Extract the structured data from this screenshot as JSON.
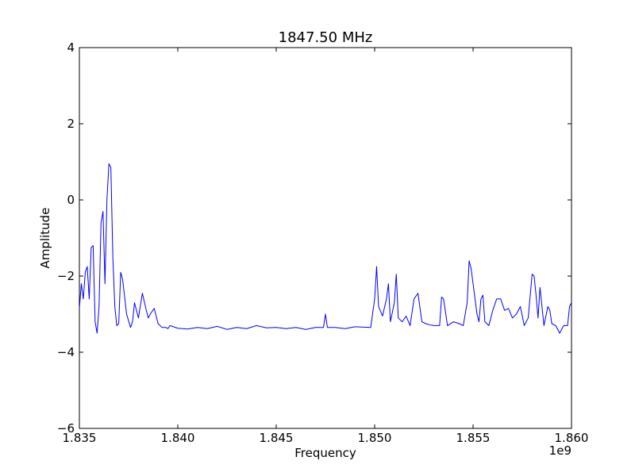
{
  "chart_data": {
    "type": "line",
    "title": "1847.50 MHz",
    "xlabel": "Frequency",
    "ylabel": "Amplitude",
    "x_offset_label": "1e9",
    "xlim": [
      1.835,
      1.86
    ],
    "ylim": [
      -6,
      4
    ],
    "x_ticks": [
      1.835,
      1.84,
      1.845,
      1.85,
      1.855,
      1.86
    ],
    "x_tick_labels": [
      "1.835",
      "1.840",
      "1.845",
      "1.850",
      "1.855",
      "1.860"
    ],
    "y_ticks": [
      4,
      2,
      0,
      -2,
      -4,
      -6
    ],
    "y_tick_labels": [
      "4",
      "2",
      "0",
      "−2",
      "−4",
      "−6"
    ],
    "grid": false,
    "series": [
      {
        "color": "#0000ff",
        "x": [
          1.835,
          1.8351,
          1.8352,
          1.8353,
          1.8354,
          1.8355,
          1.8356,
          1.8357,
          1.8358,
          1.8359,
          1.836,
          1.8361,
          1.8362,
          1.8363,
          1.8364,
          1.8365,
          1.8366,
          1.8367,
          1.8368,
          1.8369,
          1.837,
          1.8371,
          1.8372,
          1.8374,
          1.8376,
          1.8377,
          1.8378,
          1.838,
          1.8382,
          1.8384,
          1.8385,
          1.8386,
          1.8388,
          1.839,
          1.8392,
          1.8394,
          1.8395,
          1.8396,
          1.84,
          1.8405,
          1.841,
          1.8415,
          1.842,
          1.8425,
          1.843,
          1.8435,
          1.844,
          1.8445,
          1.845,
          1.8455,
          1.846,
          1.8465,
          1.847,
          1.8474,
          1.8475,
          1.8476,
          1.848,
          1.8485,
          1.849,
          1.8498,
          1.85,
          1.8501,
          1.8502,
          1.8504,
          1.8506,
          1.8507,
          1.8508,
          1.851,
          1.8511,
          1.8512,
          1.8514,
          1.8516,
          1.8518,
          1.852,
          1.8522,
          1.8524,
          1.8526,
          1.8528,
          1.853,
          1.8533,
          1.8534,
          1.8535,
          1.8537,
          1.854,
          1.8543,
          1.8545,
          1.8547,
          1.8548,
          1.8549,
          1.855,
          1.8552,
          1.8553,
          1.8554,
          1.8555,
          1.8556,
          1.8558,
          1.856,
          1.8562,
          1.8564,
          1.8566,
          1.8568,
          1.857,
          1.8572,
          1.8574,
          1.8576,
          1.8578,
          1.858,
          1.8581,
          1.8582,
          1.8583,
          1.8584,
          1.8586,
          1.8588,
          1.8589,
          1.859,
          1.8592,
          1.8594,
          1.8596,
          1.8598,
          1.8599,
          1.86
        ],
        "y": [
          -2.85,
          -2.2,
          -2.6,
          -1.9,
          -1.75,
          -2.6,
          -1.25,
          -1.2,
          -3.2,
          -3.5,
          -2.8,
          -0.6,
          -0.3,
          -2.2,
          0.0,
          0.95,
          0.85,
          -1.5,
          -2.8,
          -3.3,
          -3.25,
          -1.9,
          -2.1,
          -3.0,
          -3.35,
          -3.2,
          -2.7,
          -3.1,
          -2.45,
          -2.9,
          -3.1,
          -3.0,
          -2.85,
          -3.25,
          -3.35,
          -3.35,
          -3.38,
          -3.3,
          -3.37,
          -3.39,
          -3.35,
          -3.38,
          -3.32,
          -3.4,
          -3.35,
          -3.38,
          -3.3,
          -3.36,
          -3.35,
          -3.38,
          -3.35,
          -3.4,
          -3.35,
          -3.35,
          -3.0,
          -3.35,
          -3.35,
          -3.38,
          -3.33,
          -3.35,
          -2.6,
          -1.75,
          -2.8,
          -3.05,
          -2.6,
          -2.2,
          -3.2,
          -2.7,
          -1.95,
          -3.1,
          -3.2,
          -3.05,
          -3.3,
          -2.6,
          -2.45,
          -3.2,
          -3.25,
          -3.28,
          -3.3,
          -3.3,
          -2.55,
          -2.6,
          -3.3,
          -3.2,
          -3.25,
          -3.3,
          -2.7,
          -1.6,
          -1.8,
          -2.2,
          -3.0,
          -3.2,
          -2.6,
          -2.5,
          -3.2,
          -3.3,
          -2.9,
          -2.6,
          -2.6,
          -2.9,
          -2.85,
          -3.1,
          -3.0,
          -2.8,
          -3.3,
          -3.1,
          -1.95,
          -2.0,
          -2.5,
          -3.1,
          -2.3,
          -3.3,
          -2.8,
          -2.9,
          -3.25,
          -3.3,
          -3.5,
          -3.3,
          -3.3,
          -2.8,
          -2.7
        ]
      }
    ]
  }
}
